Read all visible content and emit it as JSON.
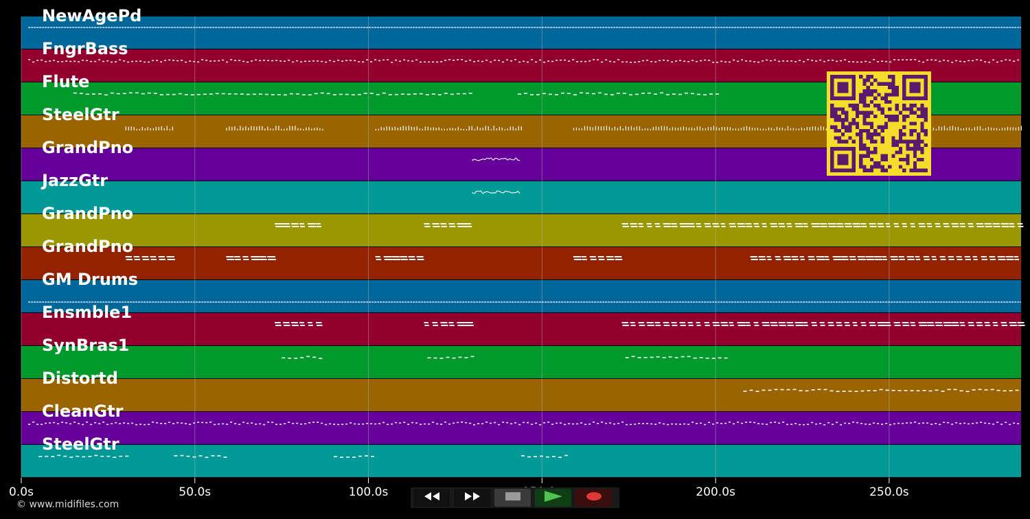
{
  "app": {
    "copyright": "© www.midifiles.com"
  },
  "colors": {
    "background": "#000000",
    "track_palette": [
      "#00679a",
      "#93002f",
      "#009a2c",
      "#9a6500",
      "#66009a",
      "#009996",
      "#9a9700",
      "#932300"
    ],
    "note": "#ffffff",
    "grid": "#bbbbbb",
    "qr_fg": "#5a1a6e",
    "qr_bg": "#f7dc2c"
  },
  "tracks": [
    {
      "name": "NewAgePd",
      "color": "#00679a",
      "spans": [
        [
          2,
          288
        ]
      ],
      "style": "line"
    },
    {
      "name": "FngrBass",
      "color": "#93002f",
      "spans": [
        [
          2,
          288
        ]
      ],
      "style": "dotted"
    },
    {
      "name": "Flute",
      "color": "#009a2c",
      "spans": [
        [
          15,
          129
        ],
        [
          143,
          200
        ]
      ],
      "style": "dashed"
    },
    {
      "name": "SteelGtr",
      "color": "#9a6500",
      "spans": [
        [
          30,
          44
        ],
        [
          59,
          87
        ],
        [
          102,
          144
        ],
        [
          159,
          288
        ]
      ],
      "style": "ticks"
    },
    {
      "name": "GrandPno",
      "color": "#66009a",
      "spans": [
        [
          130,
          144
        ]
      ],
      "style": "squiggle"
    },
    {
      "name": "JazzGtr",
      "color": "#009996",
      "spans": [
        [
          130,
          144
        ]
      ],
      "style": "squiggle"
    },
    {
      "name": "GrandPno",
      "color": "#9a9700",
      "spans": [
        [
          73,
          87
        ],
        [
          116,
          130
        ],
        [
          173,
          288
        ]
      ],
      "style": "block"
    },
    {
      "name": "GrandPno",
      "color": "#932300",
      "spans": [
        [
          30,
          44
        ],
        [
          59,
          73
        ],
        [
          102,
          116
        ],
        [
          159,
          173
        ],
        [
          210,
          288
        ]
      ],
      "style": "block"
    },
    {
      "name": "GM Drums",
      "color": "#00679a",
      "spans": [
        [
          2,
          288
        ]
      ],
      "style": "line"
    },
    {
      "name": "Ensmble1",
      "color": "#93002f",
      "spans": [
        [
          73,
          87
        ],
        [
          116,
          130
        ],
        [
          173,
          288
        ]
      ],
      "style": "block"
    },
    {
      "name": "SynBras1",
      "color": "#009a2c",
      "spans": [
        [
          75,
          87
        ],
        [
          117,
          130
        ],
        [
          174,
          204
        ]
      ],
      "style": "dashed"
    },
    {
      "name": "Distortd",
      "color": "#9a6500",
      "spans": [
        [
          208,
          288
        ]
      ],
      "style": "dashed"
    },
    {
      "name": "CleanGtr",
      "color": "#66009a",
      "spans": [
        [
          2,
          288
        ]
      ],
      "style": "dotted"
    },
    {
      "name": "SteelGtr",
      "color": "#009996",
      "spans": [
        [
          5,
          30
        ],
        [
          44,
          59
        ],
        [
          90,
          101
        ],
        [
          144,
          158
        ]
      ],
      "style": "dashed"
    }
  ],
  "timeline": {
    "max_seconds": 288,
    "ticks": [
      {
        "value": 0,
        "label": "0.0s"
      },
      {
        "value": 50,
        "label": "50.0s"
      },
      {
        "value": 100,
        "label": "100.0s"
      },
      {
        "value": 150,
        "label": "150.0s"
      },
      {
        "value": 200,
        "label": "200.0s"
      },
      {
        "value": 250,
        "label": "250.0s"
      }
    ]
  },
  "transport": [
    {
      "name": "rewind-button",
      "icon": "rewind-icon",
      "bg": "#111111"
    },
    {
      "name": "fast-forward-button",
      "icon": "fast-forward-icon",
      "bg": "#111111"
    },
    {
      "name": "stop-button",
      "icon": "stop-icon",
      "bg": "#3a3a3a"
    },
    {
      "name": "play-button",
      "icon": "play-icon",
      "bg": "#0f3d14"
    },
    {
      "name": "record-button",
      "icon": "record-icon",
      "bg": "#3b0e0e"
    }
  ]
}
